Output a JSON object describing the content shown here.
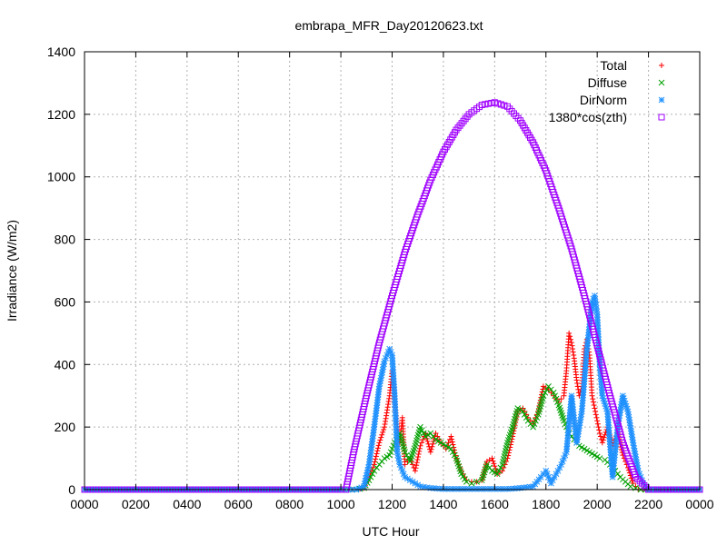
{
  "chart_data": {
    "type": "scatter",
    "title": "embrapa_MFR_Day20120623.txt",
    "xlabel": "UTC Hour",
    "ylabel": "Irradiance (W/m2)",
    "xlim": [
      0,
      24
    ],
    "ylim": [
      0,
      1400
    ],
    "xticks": [
      {
        "v": 0,
        "label": "0000"
      },
      {
        "v": 2,
        "label": "0200"
      },
      {
        "v": 4,
        "label": "0400"
      },
      {
        "v": 6,
        "label": "0600"
      },
      {
        "v": 8,
        "label": "0800"
      },
      {
        "v": 10,
        "label": "1000"
      },
      {
        "v": 12,
        "label": "1200"
      },
      {
        "v": 14,
        "label": "1400"
      },
      {
        "v": 16,
        "label": "1600"
      },
      {
        "v": 18,
        "label": "1800"
      },
      {
        "v": 20,
        "label": "2000"
      },
      {
        "v": 22,
        "label": "2200"
      },
      {
        "v": 24,
        "label": "0000"
      }
    ],
    "yticks": [
      0,
      200,
      400,
      600,
      800,
      1000,
      1200,
      1400
    ],
    "grid": true,
    "legend_position": "top-right",
    "series": [
      {
        "name": "Total",
        "color": "#ff0000",
        "marker": "plus",
        "x": [
          0,
          2,
          4,
          6,
          8,
          10,
          10.3,
          10.6,
          10.9,
          11.1,
          11.3,
          11.5,
          11.7,
          11.9,
          12.0,
          12.1,
          12.2,
          12.3,
          12.4,
          12.5,
          12.7,
          12.9,
          13.1,
          13.3,
          13.5,
          13.7,
          13.9,
          14.1,
          14.3,
          14.5,
          14.7,
          14.9,
          15.1,
          15.3,
          15.5,
          15.7,
          15.9,
          16.1,
          16.3,
          16.5,
          16.7,
          16.9,
          17.1,
          17.3,
          17.5,
          17.7,
          17.9,
          18.1,
          18.3,
          18.5,
          18.7,
          18.8,
          18.9,
          19.0,
          19.1,
          19.2,
          19.3,
          19.4,
          19.5,
          19.6,
          19.7,
          19.8,
          19.9,
          20.0,
          20.1,
          20.2,
          20.4,
          20.6,
          20.8,
          21.0,
          21.2,
          21.4,
          21.6,
          21.8,
          22.0,
          22.5,
          23,
          24
        ],
        "y": [
          0,
          0,
          0,
          0,
          0,
          0,
          0,
          0,
          5,
          40,
          80,
          150,
          200,
          300,
          380,
          280,
          200,
          150,
          230,
          80,
          100,
          60,
          140,
          180,
          120,
          180,
          150,
          130,
          170,
          100,
          60,
          30,
          25,
          25,
          30,
          90,
          100,
          50,
          60,
          100,
          170,
          250,
          260,
          230,
          210,
          250,
          330,
          320,
          300,
          280,
          300,
          380,
          500,
          470,
          420,
          350,
          300,
          330,
          450,
          480,
          430,
          300,
          260,
          220,
          180,
          150,
          200,
          140,
          180,
          110,
          70,
          20,
          0,
          0,
          0,
          0,
          0,
          0
        ]
      },
      {
        "name": "Diffuse",
        "color": "#00a000",
        "marker": "cross",
        "x": [
          0,
          2,
          4,
          6,
          8,
          10,
          10.3,
          10.6,
          10.9,
          11.1,
          11.3,
          11.5,
          11.7,
          11.9,
          12.1,
          12.3,
          12.5,
          12.7,
          12.9,
          13.1,
          13.3,
          13.5,
          13.7,
          13.9,
          14.1,
          14.3,
          14.5,
          14.7,
          14.9,
          15.1,
          15.3,
          15.5,
          15.7,
          15.9,
          16.1,
          16.3,
          16.5,
          16.7,
          16.9,
          17.1,
          17.3,
          17.5,
          17.7,
          17.9,
          18.1,
          18.3,
          18.5,
          18.7,
          18.9,
          19.1,
          19.3,
          19.5,
          19.7,
          19.9,
          20.1,
          20.3,
          20.5,
          20.7,
          20.9,
          21.1,
          21.3,
          21.5,
          21.7,
          21.9,
          22.0,
          22.5,
          23,
          24
        ],
        "y": [
          0,
          0,
          0,
          0,
          0,
          0,
          0,
          0,
          5,
          30,
          60,
          80,
          100,
          110,
          150,
          180,
          120,
          90,
          140,
          200,
          170,
          180,
          160,
          150,
          140,
          130,
          100,
          50,
          25,
          20,
          25,
          30,
          80,
          60,
          50,
          80,
          150,
          200,
          260,
          250,
          220,
          200,
          240,
          300,
          330,
          310,
          270,
          220,
          180,
          160,
          140,
          130,
          120,
          110,
          100,
          95,
          80,
          60,
          40,
          25,
          10,
          5,
          0,
          0,
          0,
          0,
          0,
          0
        ]
      },
      {
        "name": "DirNorm",
        "color": "#1e90ff",
        "marker": "star",
        "x": [
          0,
          2,
          4,
          6,
          8,
          10,
          10.3,
          10.6,
          10.9,
          11.1,
          11.3,
          11.5,
          11.7,
          11.9,
          12.0,
          12.1,
          12.2,
          12.3,
          12.5,
          12.7,
          12.9,
          13.1,
          13.5,
          14.0,
          14.5,
          15.0,
          15.5,
          16.0,
          16.5,
          17.0,
          17.5,
          17.8,
          18.0,
          18.2,
          18.4,
          18.6,
          18.8,
          19.0,
          19.2,
          19.4,
          19.6,
          19.8,
          19.9,
          20.0,
          20.1,
          20.2,
          20.4,
          20.6,
          20.8,
          21.0,
          21.2,
          21.4,
          21.6,
          21.8,
          22.0,
          22.5,
          23,
          24
        ],
        "y": [
          0,
          0,
          0,
          0,
          0,
          0,
          0,
          0,
          10,
          80,
          200,
          330,
          410,
          450,
          430,
          300,
          120,
          80,
          40,
          30,
          20,
          10,
          5,
          2,
          2,
          2,
          2,
          2,
          2,
          5,
          10,
          40,
          60,
          20,
          50,
          80,
          120,
          300,
          150,
          250,
          450,
          600,
          620,
          560,
          400,
          300,
          250,
          40,
          200,
          300,
          250,
          150,
          60,
          20,
          0,
          0,
          0,
          0
        ]
      },
      {
        "name": "1380*cos(zth)",
        "color": "#a000ff",
        "marker": "square",
        "x": [
          0,
          1,
          2,
          3,
          4,
          5,
          6,
          7,
          8,
          9,
          10,
          10.2,
          10.5,
          11,
          11.5,
          12,
          12.5,
          13,
          13.5,
          14,
          14.5,
          15,
          15.5,
          16,
          16.5,
          17,
          17.5,
          18,
          18.5,
          19,
          19.5,
          20,
          20.5,
          21,
          21.5,
          22,
          22.2,
          22.5,
          23,
          24
        ],
        "y": [
          0,
          0,
          0,
          0,
          0,
          0,
          0,
          0,
          0,
          0,
          0,
          0,
          120,
          300,
          470,
          620,
          760,
          880,
          990,
          1080,
          1150,
          1200,
          1230,
          1238,
          1225,
          1180,
          1110,
          1020,
          900,
          770,
          620,
          460,
          300,
          150,
          40,
          0,
          0,
          0,
          0,
          0
        ]
      }
    ]
  }
}
